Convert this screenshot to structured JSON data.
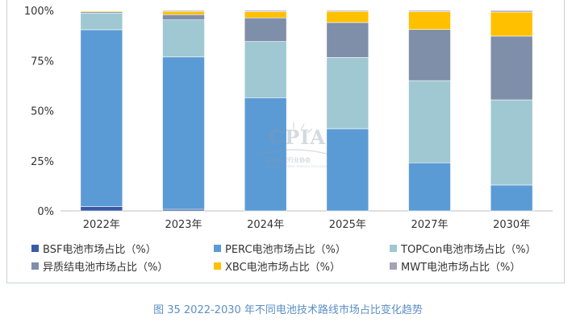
{
  "chart_data": {
    "type": "bar",
    "stacked": true,
    "categories": [
      "2022年",
      "2023年",
      "2024年",
      "2025年",
      "2027年",
      "2030年"
    ],
    "yticks": [
      "0%",
      "25%",
      "50%",
      "75%",
      "100%"
    ],
    "ylim": [
      0,
      100
    ],
    "series": [
      {
        "name": "BSF电池市场占比（%）",
        "color": "#3a5aa6",
        "values": [
          2.2,
          0.8,
          0.0,
          0.0,
          0.0,
          0.0
        ]
      },
      {
        "name": "PERC电池市场占比（%）",
        "color": "#5b9bd5",
        "values": [
          88.2,
          76.0,
          56.5,
          41.0,
          24.0,
          12.9
        ]
      },
      {
        "name": "TOPCon电池市场占比（%）",
        "color": "#9fc8d2",
        "values": [
          8.3,
          18.5,
          28.0,
          35.5,
          41.0,
          42.5
        ]
      },
      {
        "name": "异质结电池市场占比（%）",
        "color": "#7f8faa",
        "values": [
          0.6,
          2.6,
          11.8,
          17.5,
          25.5,
          31.8
        ]
      },
      {
        "name": "XBC电池市场占比（%）",
        "color": "#ffc000",
        "values": [
          0.5,
          1.6,
          3.1,
          5.5,
          8.9,
          12.0
        ]
      },
      {
        "name": "MWT电池市场占比（%）",
        "color": "#a8a1b5",
        "values": [
          0.2,
          0.5,
          0.6,
          0.5,
          0.6,
          0.8
        ]
      }
    ]
  },
  "watermark": {
    "main": "CPIA",
    "sub": "中国光伏行业协会",
    "sub_en": "China Photovoltaic Industry Association"
  },
  "caption": "图 35   2022-2030 年不同电池技术路线市场占比变化趋势"
}
